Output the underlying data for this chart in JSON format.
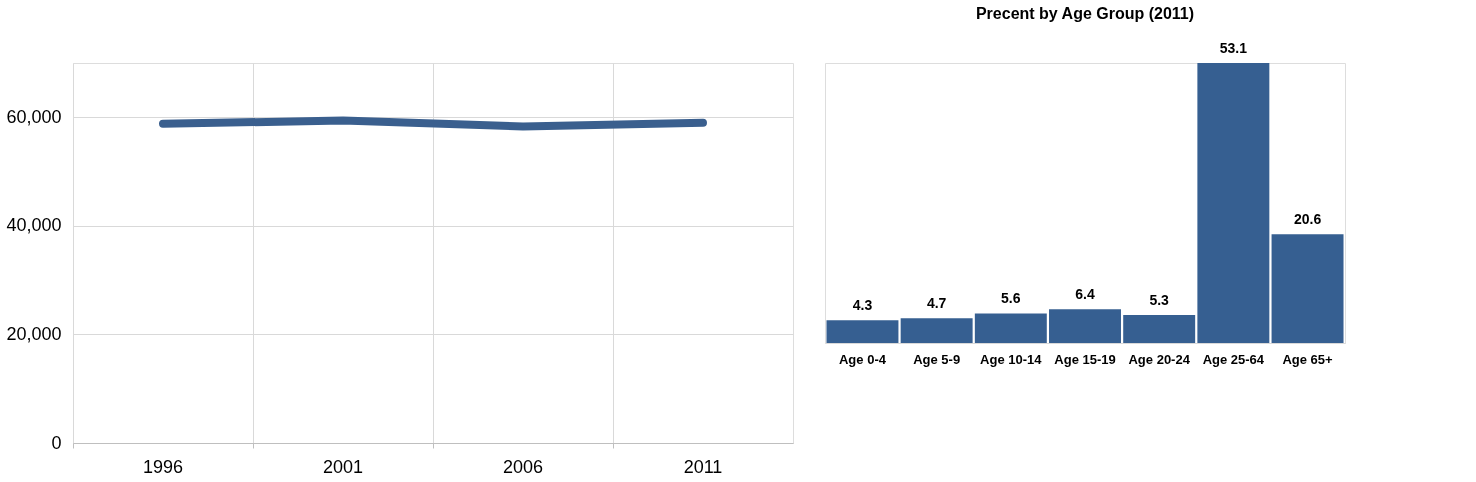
{
  "chart_data": [
    {
      "type": "line",
      "categories": [
        "1996",
        "2001",
        "2006",
        "2011"
      ],
      "series": [
        {
          "color": "#3a5f8e",
          "values": [
            58800,
            59400,
            58300,
            59000
          ]
        }
      ],
      "ylim": [
        0,
        70000
      ],
      "yticks": [
        0,
        {
          "value": 20000,
          "label": "20,000"
        },
        {
          "value": 40000,
          "label": "40,000"
        },
        {
          "value": 60000,
          "label": "60,000"
        }
      ],
      "grid": true,
      "line_style": "solid"
    },
    {
      "type": "bar",
      "title": "Precent by Age Group  (2011)",
      "categories": [
        "Age 0-4",
        "Age 5-9",
        "Age 10-14",
        "Age 15-19",
        "Age 20-24",
        "Age 25-64",
        "Age 65+"
      ],
      "values": [
        4.3,
        4.7,
        5.6,
        6.4,
        5.3,
        53.1,
        20.6
      ],
      "color": "#365f91",
      "data_labels": true
    }
  ]
}
